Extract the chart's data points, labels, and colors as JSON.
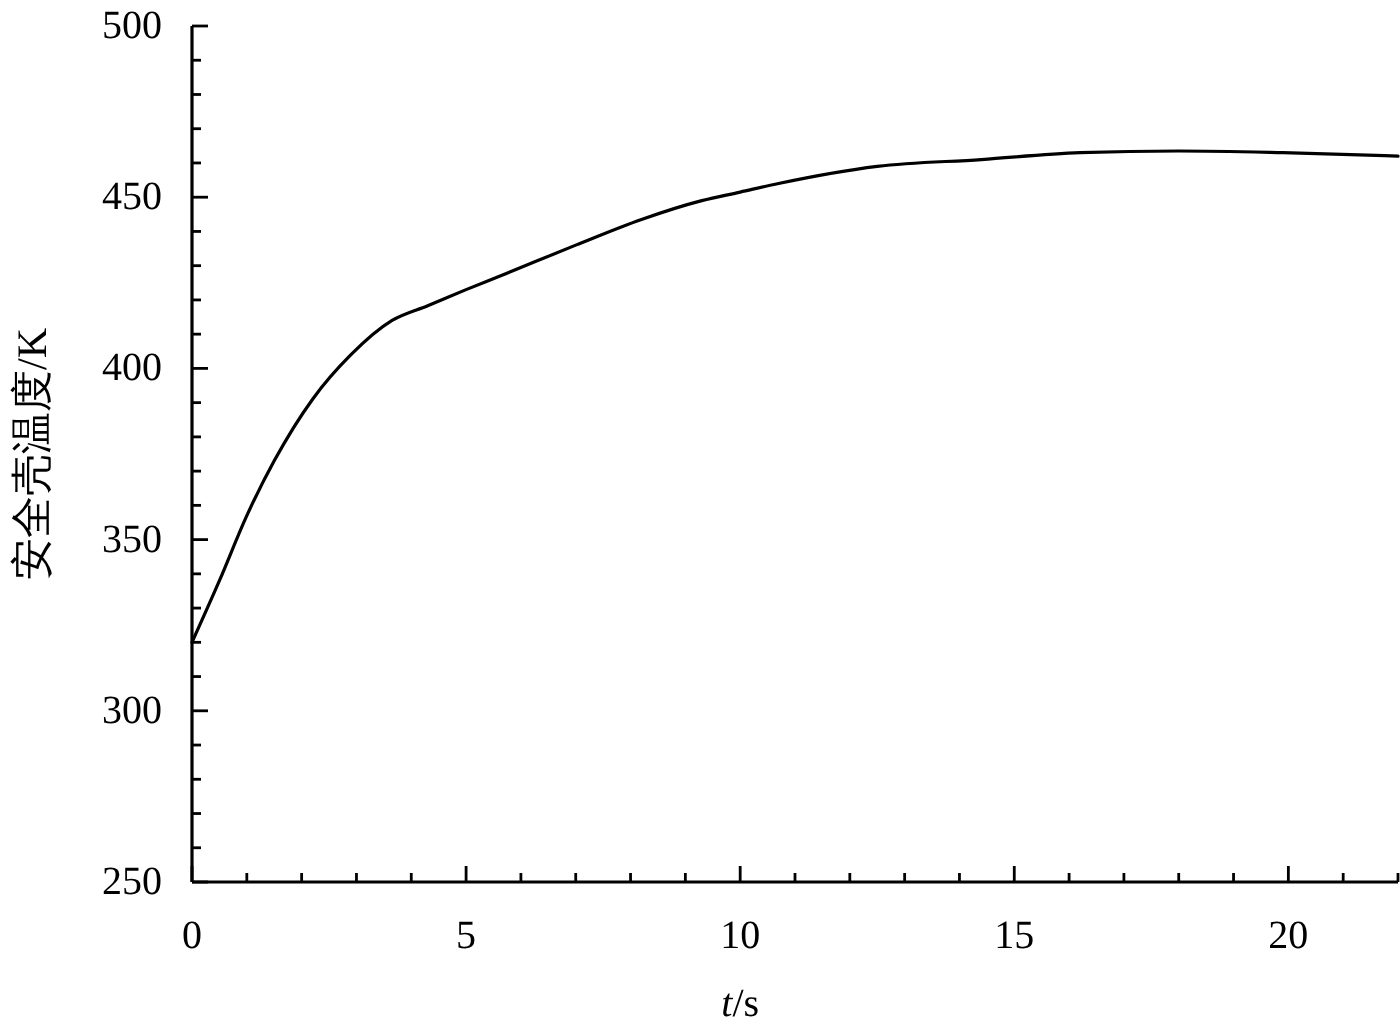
{
  "chart_data": {
    "type": "line",
    "xlabel": "t/s",
    "ylabel": "安全壳温度/K",
    "xlim": [
      0,
      22
    ],
    "ylim": [
      250,
      500
    ],
    "xticks": [
      0,
      {
        "value": 1,
        "label": null
      },
      {
        "value": 2,
        "label": null
      },
      {
        "value": 3,
        "label": null
      },
      {
        "value": 4,
        "label": null
      },
      5,
      {
        "value": 6,
        "label": null
      },
      {
        "value": 7,
        "label": null
      },
      {
        "value": 8,
        "label": null
      },
      {
        "value": 9,
        "label": null
      },
      10,
      {
        "value": 11,
        "label": null
      },
      {
        "value": 12,
        "label": null
      },
      {
        "value": 13,
        "label": null
      },
      {
        "value": 14,
        "label": null
      },
      15,
      {
        "value": 16,
        "label": null
      },
      {
        "value": 17,
        "label": null
      },
      {
        "value": 18,
        "label": null
      },
      {
        "value": 19,
        "label": null
      },
      20,
      {
        "value": 21,
        "label": null
      },
      {
        "value": 22,
        "label": null
      }
    ],
    "yticks": [
      250,
      {
        "value": 260,
        "label": null
      },
      {
        "value": 270,
        "label": null
      },
      {
        "value": 280,
        "label": null
      },
      {
        "value": 290,
        "label": null
      },
      300,
      {
        "value": 310,
        "label": null
      },
      {
        "value": 320,
        "label": null
      },
      {
        "value": 330,
        "label": null
      },
      {
        "value": 340,
        "label": null
      },
      350,
      {
        "value": 360,
        "label": null
      },
      {
        "value": 370,
        "label": null
      },
      {
        "value": 380,
        "label": null
      },
      {
        "value": 390,
        "label": null
      },
      400,
      {
        "value": 410,
        "label": null
      },
      {
        "value": 420,
        "label": null
      },
      {
        "value": 430,
        "label": null
      },
      {
        "value": 440,
        "label": null
      },
      450,
      {
        "value": 460,
        "label": null
      },
      {
        "value": 470,
        "label": null
      },
      {
        "value": 480,
        "label": null
      },
      {
        "value": 490,
        "label": null
      },
      500
    ],
    "series": [
      {
        "color": "#000000",
        "x": [
          0,
          0.5,
          1,
          1.5,
          2.2,
          2.9,
          3.65,
          4.3,
          5,
          5.7,
          7,
          8.2,
          9.3,
          10,
          10.7,
          12.5,
          14.4,
          16.2,
          18,
          19.9,
          22
        ],
        "values": [
          320,
          338,
          357,
          373,
          391,
          404,
          414,
          418.3,
          423,
          427.5,
          436,
          443.5,
          449,
          451.5,
          454,
          459,
          461,
          463,
          463.5,
          463,
          462
        ]
      }
    ],
    "line_style": "solid"
  }
}
